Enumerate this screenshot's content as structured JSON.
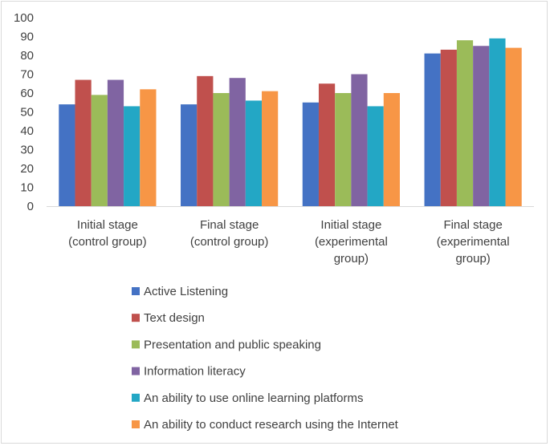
{
  "chart_data": {
    "type": "bar",
    "categories": [
      [
        "Initial stage",
        "(control group)"
      ],
      [
        "Final stage",
        "(control group)"
      ],
      [
        "Initial stage",
        "(experimental",
        "group)"
      ],
      [
        "Final stage",
        "(experimental",
        "group)"
      ]
    ],
    "series": [
      {
        "name": "Active Listening",
        "color": "#4472C4",
        "values": [
          54,
          54,
          55,
          81
        ]
      },
      {
        "name": "Text design",
        "color": "#C0504D",
        "values": [
          67,
          69,
          65,
          83
        ]
      },
      {
        "name": "Presentation and public speaking",
        "color": "#9BBB59",
        "values": [
          59,
          60,
          60,
          88
        ]
      },
      {
        "name": "Information literacy",
        "color": "#8064A2",
        "values": [
          67,
          68,
          70,
          85
        ]
      },
      {
        "name": "An ability to use online learning platforms",
        "color": "#23A7C5",
        "values": [
          53,
          56,
          53,
          89
        ]
      },
      {
        "name": "An ability to conduct research using the Internet",
        "color": "#F79646",
        "values": [
          62,
          61,
          60,
          84
        ]
      }
    ],
    "ylim": [
      0,
      100
    ],
    "yticks": [
      0,
      10,
      20,
      30,
      40,
      50,
      60,
      70,
      80,
      90,
      100
    ],
    "grid": false,
    "legend_position": "bottom"
  }
}
